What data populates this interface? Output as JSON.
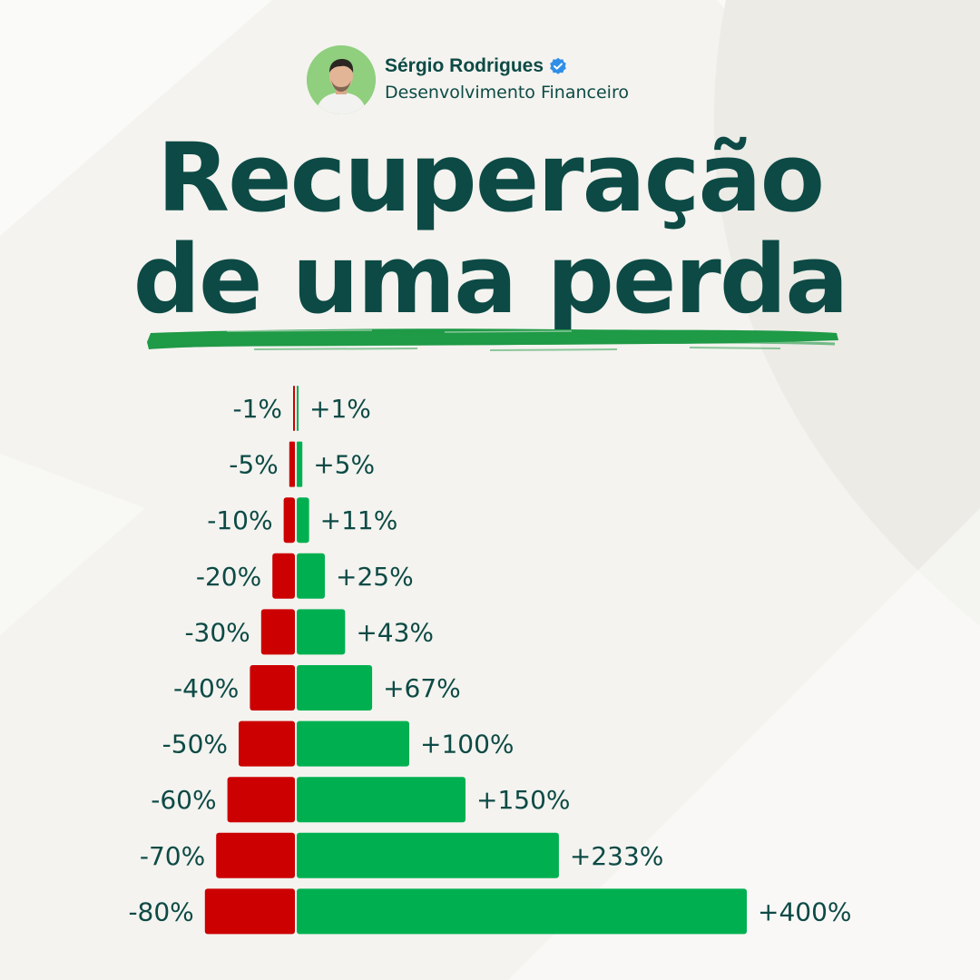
{
  "author": {
    "name": "Sérgio Rodrigues",
    "role": "Desenvolvimento Financeiro",
    "verified_icon": "verified-badge-icon",
    "avatar": "avatar-photo"
  },
  "headline": {
    "line1": "Recuperação",
    "line2": "de uma perda",
    "underline_color": "#1f9a46"
  },
  "colors": {
    "loss": "#cc0000",
    "gain": "#00b050",
    "text": "#0d4a45",
    "background": "#f4f3ef"
  },
  "chart_data": {
    "type": "bar",
    "orientation": "horizontal-diverging",
    "series": [
      {
        "key": "loss",
        "values": [
          -1,
          -5,
          -10,
          -20,
          -30,
          -40,
          -50,
          -60,
          -70,
          -80
        ],
        "labels": [
          "-1%",
          "-5%",
          "-10%",
          "-20%",
          "-30%",
          "-40%",
          "-50%",
          "-60%",
          "-70%",
          "-80%"
        ]
      },
      {
        "key": "gain",
        "values": [
          1,
          5,
          11,
          25,
          43,
          67,
          100,
          150,
          233,
          400
        ],
        "labels": [
          "+1%",
          "+5%",
          "+11%",
          "+25%",
          "+43%",
          "+67%",
          "+100%",
          "+150%",
          "+233%",
          "+400%"
        ]
      }
    ]
  }
}
